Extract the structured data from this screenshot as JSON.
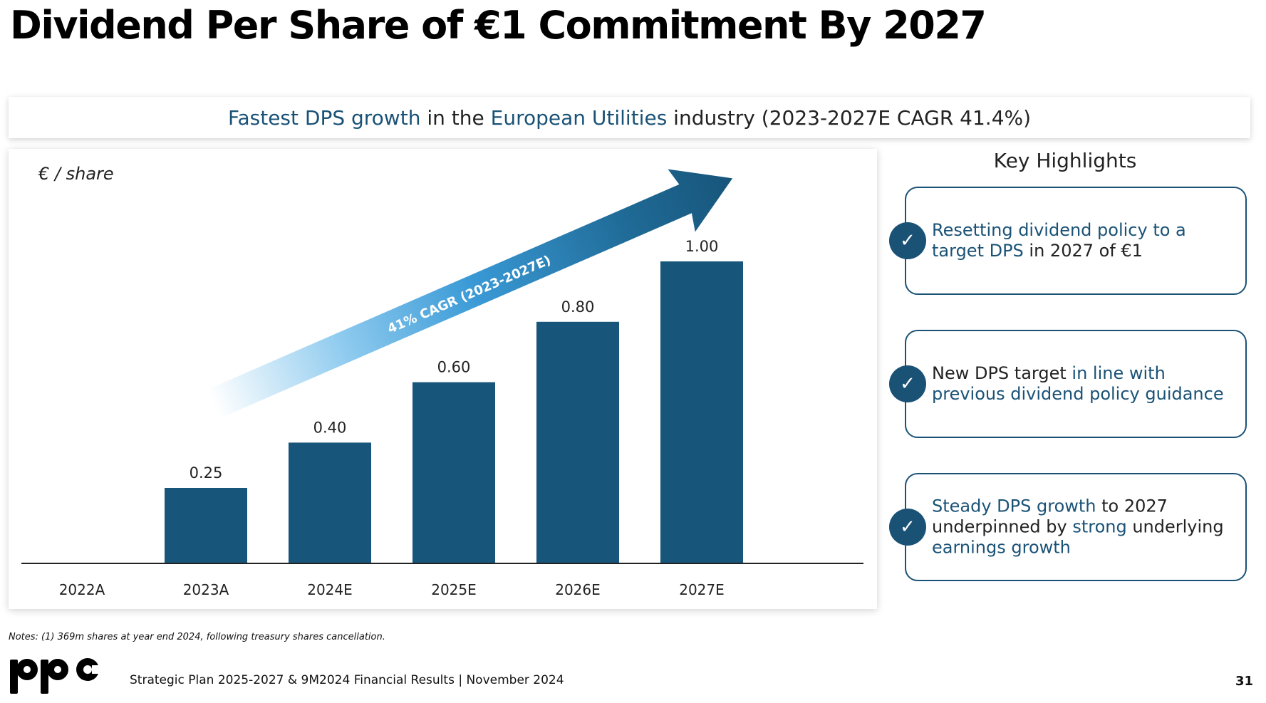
{
  "page": {
    "title": "Dividend Per Share of €1 Commitment By 2027",
    "banner": {
      "part1": "Fastest DPS growth",
      "part2": " in the ",
      "part3": "European Utilities",
      "part4": " industry (2023-2027E CAGR 41.4%)"
    },
    "notes": "Notes:  (1) 369m shares at year end 2024, following treasury shares cancellation.",
    "footer": "Strategic Plan 2025-2027 & 9M2024 Financial Results | November 2024",
    "page_number": "31",
    "logo_text": "ppc"
  },
  "highlights": {
    "title": "Key Highlights",
    "cards": [
      {
        "h1": "Resetting dividend policy to a target DPS",
        "t1": " in 2027 of €1",
        "h2": "",
        "t2": "",
        "h3": "",
        "t3": ""
      },
      {
        "h1": "",
        "t1": "New DPS target ",
        "h2": "in line with previous dividend policy guidance",
        "t2": "",
        "h3": "",
        "t3": ""
      },
      {
        "h1": "Steady DPS growth",
        "t1": " to 2027 underpinned by ",
        "h2": "strong",
        "t2": " underlying ",
        "h3": "earnings growth",
        "t3": ""
      }
    ]
  },
  "chart_data": {
    "type": "bar",
    "ylabel": "€ / share",
    "categories": [
      "2022A",
      "2023A",
      "2024E",
      "2025E",
      "2026E",
      "2027E"
    ],
    "values": [
      null,
      0.25,
      0.4,
      0.6,
      0.8,
      1.0
    ],
    "value_labels": [
      "",
      "0.25",
      "0.40",
      "0.60",
      "0.80",
      "1.00"
    ],
    "ylim": [
      0,
      1.0
    ],
    "bar_color": "#17557a",
    "annotation": "41% CAGR (2023-2027E)",
    "grid": false
  },
  "colors": {
    "accent": "#1a5276",
    "bar": "#17557a"
  }
}
